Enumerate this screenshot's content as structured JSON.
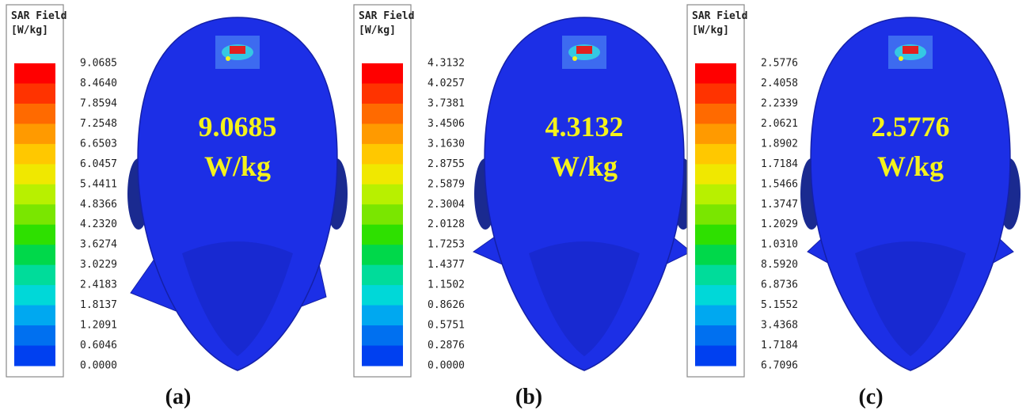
{
  "panels": [
    {
      "legend_title": "SAR Field",
      "legend_unit": "[W/kg]",
      "legend_labels": [
        "9.0685",
        "8.4640",
        "7.8594",
        "7.2548",
        "6.6503",
        "6.0457",
        "5.4411",
        "4.8366",
        "4.2320",
        "3.6274",
        "3.0229",
        "2.4183",
        "1.8137",
        "1.2091",
        "0.6046",
        "0.0000"
      ],
      "peak_value": "9.0685",
      "peak_unit": "W/kg",
      "caption": "(a)"
    },
    {
      "legend_title": "SAR Field",
      "legend_unit": "[W/kg]",
      "legend_labels": [
        "4.3132",
        "4.0257",
        "3.7381",
        "3.4506",
        "3.1630",
        "2.8755",
        "2.5879",
        "2.3004",
        "2.0128",
        "1.7253",
        "1.4377",
        "1.1502",
        "0.8626",
        "0.5751",
        "0.2876",
        "0.0000"
      ],
      "peak_value": "4.3132",
      "peak_unit": "W/kg",
      "caption": "(b)"
    },
    {
      "legend_title": "SAR Field",
      "legend_unit": "[W/kg]",
      "legend_labels": [
        "2.5776",
        "2.4058",
        "2.2339",
        "2.0621",
        "1.8902",
        "1.7184",
        "1.5466",
        "1.3747",
        "1.2029",
        "1.0310",
        "8.5920",
        "6.8736",
        "5.1552",
        "3.4368",
        "1.7184",
        "6.7096"
      ],
      "peak_value": "2.5776",
      "peak_unit": "W/kg",
      "caption": "(c)"
    }
  ]
}
